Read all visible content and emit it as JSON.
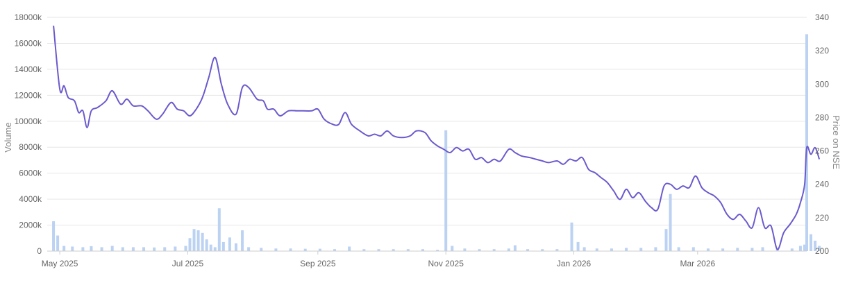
{
  "chart_data": {
    "type": "bar+line",
    "y_left": {
      "label": "Volume",
      "ticks": [
        "0",
        "2000k",
        "4000k",
        "6000k",
        "8000k",
        "10000k",
        "12000k",
        "14000k",
        "16000k",
        "18000k"
      ],
      "range": [
        0,
        18000
      ]
    },
    "y_right": {
      "label": "Price on NSE",
      "ticks": [
        "200",
        "220",
        "240",
        "260",
        "280",
        "300",
        "320",
        "340"
      ],
      "range": [
        200,
        340
      ]
    },
    "x_axis": {
      "range": [
        "2025-04-25",
        "2026-04-22"
      ],
      "ticks": [
        {
          "date": "2025-05-01",
          "label": "May 2025"
        },
        {
          "date": "2025-07-01",
          "label": "Jul 2025"
        },
        {
          "date": "2025-09-01",
          "label": "Sep 2025"
        },
        {
          "date": "2025-11-01",
          "label": "Nov 2025"
        },
        {
          "date": "2026-01-01",
          "label": "Jan 2026"
        },
        {
          "date": "2026-03-01",
          "label": "Mar 2026"
        }
      ]
    },
    "grid": true,
    "colors": {
      "price_line": "#6a5acd",
      "volume_bar": "#bcd2f2",
      "grid": "#e6e6e6",
      "tick_text": "#666666"
    },
    "price_series": [
      [
        "2025-04-28",
        335
      ],
      [
        "2025-05-01",
        297
      ],
      [
        "2025-05-03",
        299
      ],
      [
        "2025-05-05",
        292
      ],
      [
        "2025-05-08",
        290
      ],
      [
        "2025-05-10",
        283
      ],
      [
        "2025-05-12",
        284
      ],
      [
        "2025-05-14",
        274
      ],
      [
        "2025-05-16",
        284
      ],
      [
        "2025-05-19",
        286
      ],
      [
        "2025-05-23",
        290
      ],
      [
        "2025-05-26",
        296
      ],
      [
        "2025-05-30",
        288
      ],
      [
        "2025-06-02",
        291
      ],
      [
        "2025-06-05",
        287
      ],
      [
        "2025-06-09",
        287
      ],
      [
        "2025-06-12",
        284
      ],
      [
        "2025-06-16",
        279
      ],
      [
        "2025-06-19",
        282
      ],
      [
        "2025-06-23",
        289
      ],
      [
        "2025-06-26",
        285
      ],
      [
        "2025-06-29",
        284
      ],
      [
        "2025-07-02",
        281
      ],
      [
        "2025-07-05",
        285
      ],
      [
        "2025-07-08",
        292
      ],
      [
        "2025-07-11",
        304
      ],
      [
        "2025-07-14",
        316
      ],
      [
        "2025-07-17",
        300
      ],
      [
        "2025-07-20",
        288
      ],
      [
        "2025-07-24",
        282
      ],
      [
        "2025-07-27",
        298
      ],
      [
        "2025-07-30",
        298
      ],
      [
        "2025-08-03",
        291
      ],
      [
        "2025-08-06",
        290
      ],
      [
        "2025-08-08",
        285
      ],
      [
        "2025-08-11",
        285
      ],
      [
        "2025-08-14",
        281
      ],
      [
        "2025-08-18",
        284
      ],
      [
        "2025-08-22",
        284
      ],
      [
        "2025-08-25",
        284
      ],
      [
        "2025-08-29",
        284
      ],
      [
        "2025-09-01",
        285
      ],
      [
        "2025-09-04",
        279
      ],
      [
        "2025-09-08",
        276
      ],
      [
        "2025-09-11",
        276
      ],
      [
        "2025-09-14",
        283
      ],
      [
        "2025-09-17",
        276
      ],
      [
        "2025-09-21",
        272
      ],
      [
        "2025-09-25",
        269
      ],
      [
        "2025-09-28",
        270
      ],
      [
        "2025-10-01",
        269
      ],
      [
        "2025-10-04",
        272
      ],
      [
        "2025-10-07",
        269
      ],
      [
        "2025-10-11",
        268
      ],
      [
        "2025-10-15",
        269
      ],
      [
        "2025-10-18",
        272
      ],
      [
        "2025-10-22",
        271
      ],
      [
        "2025-10-25",
        266
      ],
      [
        "2025-10-28",
        263
      ],
      [
        "2025-10-31",
        261
      ],
      [
        "2025-11-03",
        259
      ],
      [
        "2025-11-06",
        262
      ],
      [
        "2025-11-09",
        260
      ],
      [
        "2025-11-12",
        261
      ],
      [
        "2025-11-15",
        255
      ],
      [
        "2025-11-18",
        256
      ],
      [
        "2025-11-21",
        253
      ],
      [
        "2025-11-24",
        255
      ],
      [
        "2025-11-27",
        254
      ],
      [
        "2025-12-01",
        261
      ],
      [
        "2025-12-04",
        259
      ],
      [
        "2025-12-07",
        257
      ],
      [
        "2025-12-11",
        256
      ],
      [
        "2025-12-14",
        255
      ],
      [
        "2025-12-17",
        254
      ],
      [
        "2025-12-20",
        253
      ],
      [
        "2025-12-24",
        254
      ],
      [
        "2025-12-27",
        252
      ],
      [
        "2025-12-30",
        255
      ],
      [
        "2026-01-02",
        254
      ],
      [
        "2026-01-05",
        256
      ],
      [
        "2026-01-08",
        249
      ],
      [
        "2026-01-11",
        247
      ],
      [
        "2026-01-14",
        244
      ],
      [
        "2026-01-17",
        241
      ],
      [
        "2026-01-20",
        236
      ],
      [
        "2026-01-23",
        231
      ],
      [
        "2026-01-26",
        237
      ],
      [
        "2026-01-29",
        232
      ],
      [
        "2026-02-01",
        235
      ],
      [
        "2026-02-04",
        230
      ],
      [
        "2026-02-07",
        226
      ],
      [
        "2026-02-10",
        225
      ],
      [
        "2026-02-13",
        239
      ],
      [
        "2026-02-16",
        240
      ],
      [
        "2026-02-19",
        237
      ],
      [
        "2026-02-22",
        239
      ],
      [
        "2026-02-25",
        238
      ],
      [
        "2026-02-28",
        245
      ],
      [
        "2026-03-03",
        238
      ],
      [
        "2026-03-06",
        235
      ],
      [
        "2026-03-09",
        233
      ],
      [
        "2026-03-12",
        229
      ],
      [
        "2026-03-15",
        222
      ],
      [
        "2026-03-18",
        219
      ],
      [
        "2026-03-21",
        222
      ],
      [
        "2026-03-24",
        218
      ],
      [
        "2026-03-27",
        214
      ],
      [
        "2026-03-30",
        226
      ],
      [
        "2026-04-02",
        214
      ],
      [
        "2026-04-05",
        215
      ],
      [
        "2026-04-08",
        201
      ],
      [
        "2026-04-11",
        211
      ],
      [
        "2026-04-14",
        216
      ],
      [
        "2026-04-17",
        222
      ],
      [
        "2026-04-19",
        229
      ],
      [
        "2026-04-21",
        240
      ],
      [
        "2026-04-22",
        262
      ],
      [
        "2026-04-24",
        258
      ],
      [
        "2026-04-26",
        262
      ],
      [
        "2026-04-28",
        255
      ]
    ],
    "volume_series": [
      [
        "2025-04-28",
        2300
      ],
      [
        "2025-04-30",
        1200
      ],
      [
        "2025-05-03",
        400
      ],
      [
        "2025-05-07",
        350
      ],
      [
        "2025-05-12",
        300
      ],
      [
        "2025-05-16",
        380
      ],
      [
        "2025-05-21",
        300
      ],
      [
        "2025-05-26",
        400
      ],
      [
        "2025-05-31",
        300
      ],
      [
        "2025-06-05",
        300
      ],
      [
        "2025-06-10",
        300
      ],
      [
        "2025-06-15",
        280
      ],
      [
        "2025-06-20",
        300
      ],
      [
        "2025-06-25",
        350
      ],
      [
        "2025-06-30",
        400
      ],
      [
        "2025-07-02",
        1000
      ],
      [
        "2025-07-04",
        1700
      ],
      [
        "2025-07-06",
        1600
      ],
      [
        "2025-07-08",
        1400
      ],
      [
        "2025-07-10",
        900
      ],
      [
        "2025-07-12",
        500
      ],
      [
        "2025-07-14",
        300
      ],
      [
        "2025-07-16",
        3300
      ],
      [
        "2025-07-18",
        700
      ],
      [
        "2025-07-21",
        1050
      ],
      [
        "2025-07-24",
        600
      ],
      [
        "2025-07-27",
        1600
      ],
      [
        "2025-07-30",
        300
      ],
      [
        "2025-08-05",
        250
      ],
      [
        "2025-08-12",
        200
      ],
      [
        "2025-08-19",
        200
      ],
      [
        "2025-08-26",
        180
      ],
      [
        "2025-09-02",
        180
      ],
      [
        "2025-09-09",
        150
      ],
      [
        "2025-09-16",
        350
      ],
      [
        "2025-09-23",
        150
      ],
      [
        "2025-09-30",
        150
      ],
      [
        "2025-10-07",
        150
      ],
      [
        "2025-10-14",
        150
      ],
      [
        "2025-10-21",
        150
      ],
      [
        "2025-10-28",
        100
      ],
      [
        "2025-11-01",
        9300
      ],
      [
        "2025-11-04",
        400
      ],
      [
        "2025-11-10",
        200
      ],
      [
        "2025-11-17",
        150
      ],
      [
        "2025-11-24",
        150
      ],
      [
        "2025-12-01",
        200
      ],
      [
        "2025-12-04",
        450
      ],
      [
        "2025-12-10",
        150
      ],
      [
        "2025-12-17",
        150
      ],
      [
        "2025-12-24",
        150
      ],
      [
        "2025-12-31",
        2200
      ],
      [
        "2026-01-03",
        700
      ],
      [
        "2026-01-06",
        300
      ],
      [
        "2026-01-12",
        200
      ],
      [
        "2026-01-19",
        200
      ],
      [
        "2026-01-26",
        250
      ],
      [
        "2026-02-02",
        250
      ],
      [
        "2026-02-09",
        300
      ],
      [
        "2026-02-14",
        1700
      ],
      [
        "2026-02-16",
        4400
      ],
      [
        "2026-02-20",
        300
      ],
      [
        "2026-02-27",
        300
      ],
      [
        "2026-03-06",
        200
      ],
      [
        "2026-03-13",
        200
      ],
      [
        "2026-03-20",
        250
      ],
      [
        "2026-03-27",
        250
      ],
      [
        "2026-04-01",
        300
      ],
      [
        "2026-04-08",
        200
      ],
      [
        "2026-04-15",
        200
      ],
      [
        "2026-04-19",
        400
      ],
      [
        "2026-04-21",
        500
      ],
      [
        "2026-04-22",
        16700
      ],
      [
        "2026-04-24",
        1300
      ],
      [
        "2026-04-26",
        800
      ],
      [
        "2026-04-28",
        400
      ]
    ]
  }
}
